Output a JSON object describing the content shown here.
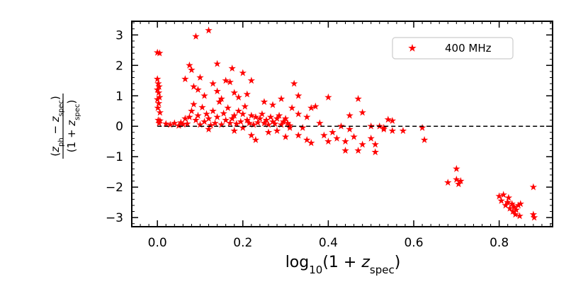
{
  "chart_data": {
    "type": "scatter",
    "xlabel": "log10(1 + z_spec)",
    "ylabel": "(z_ph − z_spec) / (1 + z_spec)",
    "xlim": [
      -0.06,
      0.925
    ],
    "ylim": [
      -3.3,
      3.45
    ],
    "xticks": [
      0.0,
      0.2,
      0.4,
      0.6,
      0.8
    ],
    "xtick_labels": [
      "0.0",
      "0.2",
      "0.4",
      "0.6",
      "0.8"
    ],
    "yticks": [
      -3,
      -2,
      -1,
      0,
      1,
      2,
      3
    ],
    "ytick_labels": [
      "−3",
      "−2",
      "−1",
      "0",
      "1",
      "2",
      "3"
    ],
    "reference_line": {
      "y": 0,
      "style": "dashed",
      "color": "#000000"
    },
    "grid": false,
    "legend": {
      "position": "top-right"
    },
    "series": [
      {
        "name": "400 MHz",
        "color": "#ff0000",
        "marker": "star",
        "points": [
          [
            0.0,
            2.42
          ],
          [
            0.005,
            2.4
          ],
          [
            0.0,
            1.55
          ],
          [
            0.002,
            1.4
          ],
          [
            0.004,
            1.3
          ],
          [
            0.0,
            1.2
          ],
          [
            0.003,
            1.1
          ],
          [
            0.005,
            0.95
          ],
          [
            0.0,
            0.88
          ],
          [
            0.003,
            0.75
          ],
          [
            0.001,
            0.6
          ],
          [
            0.006,
            0.45
          ],
          [
            0.002,
            0.2
          ],
          [
            0.004,
            0.1
          ],
          [
            0.006,
            0.18
          ],
          [
            0.02,
            0.08
          ],
          [
            0.03,
            0.05
          ],
          [
            0.04,
            0.1
          ],
          [
            0.05,
            0.02
          ],
          [
            0.055,
            0.12
          ],
          [
            0.06,
            0.06
          ],
          [
            0.065,
            0.25
          ],
          [
            0.07,
            0.08
          ],
          [
            0.075,
            0.3
          ],
          [
            0.08,
            0.5
          ],
          [
            0.085,
            0.72
          ],
          [
            0.09,
            0.2
          ],
          [
            0.095,
            0.35
          ],
          [
            0.1,
            0.05
          ],
          [
            0.105,
            0.62
          ],
          [
            0.11,
            0.15
          ],
          [
            0.115,
            0.4
          ],
          [
            0.12,
            0.25
          ],
          [
            0.125,
            0.03
          ],
          [
            0.13,
            0.5
          ],
          [
            0.135,
            0.1
          ],
          [
            0.14,
            0.3
          ],
          [
            0.145,
            0.8
          ],
          [
            0.15,
            0.05
          ],
          [
            0.155,
            0.42
          ],
          [
            0.16,
            0.2
          ],
          [
            0.165,
            0.6
          ],
          [
            0.17,
            0.1
          ],
          [
            0.175,
            0.25
          ],
          [
            0.18,
            0.35
          ],
          [
            0.185,
            0.08
          ],
          [
            0.19,
            0.5
          ],
          [
            0.195,
            0.15
          ],
          [
            0.2,
            0.4
          ],
          [
            0.205,
            0.65
          ],
          [
            0.21,
            0.2
          ],
          [
            0.215,
            0.1
          ],
          [
            0.22,
            0.35
          ],
          [
            0.225,
            0.05
          ],
          [
            0.23,
            0.3
          ],
          [
            0.235,
            0.12
          ],
          [
            0.24,
            0.25
          ],
          [
            0.245,
            0.4
          ],
          [
            0.25,
            0.1
          ],
          [
            0.255,
            0.2
          ],
          [
            0.26,
            0.05
          ],
          [
            0.265,
            0.3
          ],
          [
            0.27,
            0.15
          ],
          [
            0.275,
            0.08
          ],
          [
            0.28,
            0.25
          ],
          [
            0.285,
            0.35
          ],
          [
            0.29,
            0.05
          ],
          [
            0.295,
            0.15
          ],
          [
            0.3,
            0.25
          ],
          [
            0.305,
            0.1
          ],
          [
            0.31,
            0.02
          ],
          [
            0.075,
            2.0
          ],
          [
            0.08,
            1.85
          ],
          [
            0.09,
            2.95
          ],
          [
            0.12,
            3.15
          ],
          [
            0.1,
            1.6
          ],
          [
            0.085,
            1.3
          ],
          [
            0.11,
            1.0
          ],
          [
            0.13,
            1.4
          ],
          [
            0.14,
            1.15
          ],
          [
            0.16,
            1.5
          ],
          [
            0.17,
            1.45
          ],
          [
            0.175,
            1.9
          ],
          [
            0.18,
            1.1
          ],
          [
            0.2,
            1.75
          ],
          [
            0.21,
            1.05
          ],
          [
            0.22,
            1.5
          ],
          [
            0.14,
            2.05
          ],
          [
            0.065,
            1.55
          ],
          [
            0.095,
            1.2
          ],
          [
            0.15,
            0.9
          ],
          [
            0.19,
            0.95
          ],
          [
            0.25,
            0.8
          ],
          [
            0.27,
            0.7
          ],
          [
            0.29,
            0.9
          ],
          [
            0.315,
            0.6
          ],
          [
            0.33,
            0.4
          ],
          [
            0.35,
            0.3
          ],
          [
            0.12,
            -0.1
          ],
          [
            0.18,
            -0.15
          ],
          [
            0.2,
            -0.05
          ],
          [
            0.22,
            -0.3
          ],
          [
            0.23,
            -0.45
          ],
          [
            0.26,
            -0.2
          ],
          [
            0.28,
            -0.15
          ],
          [
            0.3,
            -0.35
          ],
          [
            0.31,
            -0.05
          ],
          [
            0.33,
            -0.3
          ],
          [
            0.35,
            -0.45
          ],
          [
            0.34,
            -0.05
          ],
          [
            0.32,
            1.4
          ],
          [
            0.33,
            1.0
          ],
          [
            0.36,
            0.6
          ],
          [
            0.37,
            0.65
          ],
          [
            0.38,
            0.1
          ],
          [
            0.39,
            -0.3
          ],
          [
            0.4,
            -0.5
          ],
          [
            0.42,
            -0.4
          ],
          [
            0.41,
            -0.2
          ],
          [
            0.44,
            -0.5
          ],
          [
            0.45,
            -0.1
          ],
          [
            0.46,
            -0.35
          ],
          [
            0.48,
            0.45
          ],
          [
            0.5,
            -0.4
          ],
          [
            0.47,
            0.9
          ],
          [
            0.43,
            0.0
          ],
          [
            0.44,
            -0.8
          ],
          [
            0.47,
            -0.8
          ],
          [
            0.5,
            0.0
          ],
          [
            0.51,
            -0.85
          ],
          [
            0.52,
            0.0
          ],
          [
            0.53,
            -0.05
          ],
          [
            0.54,
            0.22
          ],
          [
            0.55,
            0.18
          ],
          [
            0.575,
            -0.15
          ],
          [
            0.62,
            -0.05
          ],
          [
            0.625,
            -0.45
          ],
          [
            0.4,
            0.95
          ],
          [
            0.45,
            0.35
          ],
          [
            0.48,
            -0.6
          ],
          [
            0.51,
            -0.6
          ],
          [
            0.53,
            -0.1
          ],
          [
            0.55,
            -0.15
          ],
          [
            0.36,
            -0.55
          ],
          [
            0.68,
            -1.85
          ],
          [
            0.7,
            -1.4
          ],
          [
            0.7,
            -1.75
          ],
          [
            0.705,
            -1.9
          ],
          [
            0.71,
            -1.8
          ],
          [
            0.8,
            -2.3
          ],
          [
            0.805,
            -2.45
          ],
          [
            0.81,
            -2.25
          ],
          [
            0.815,
            -2.6
          ],
          [
            0.82,
            -2.5
          ],
          [
            0.822,
            -2.35
          ],
          [
            0.825,
            -2.7
          ],
          [
            0.83,
            -2.55
          ],
          [
            0.832,
            -2.8
          ],
          [
            0.835,
            -2.65
          ],
          [
            0.838,
            -2.9
          ],
          [
            0.84,
            -2.75
          ],
          [
            0.845,
            -2.6
          ],
          [
            0.848,
            -2.95
          ],
          [
            0.85,
            -2.55
          ],
          [
            0.88,
            -2.0
          ],
          [
            0.88,
            -2.9
          ],
          [
            0.882,
            -3.0
          ]
        ]
      }
    ]
  }
}
